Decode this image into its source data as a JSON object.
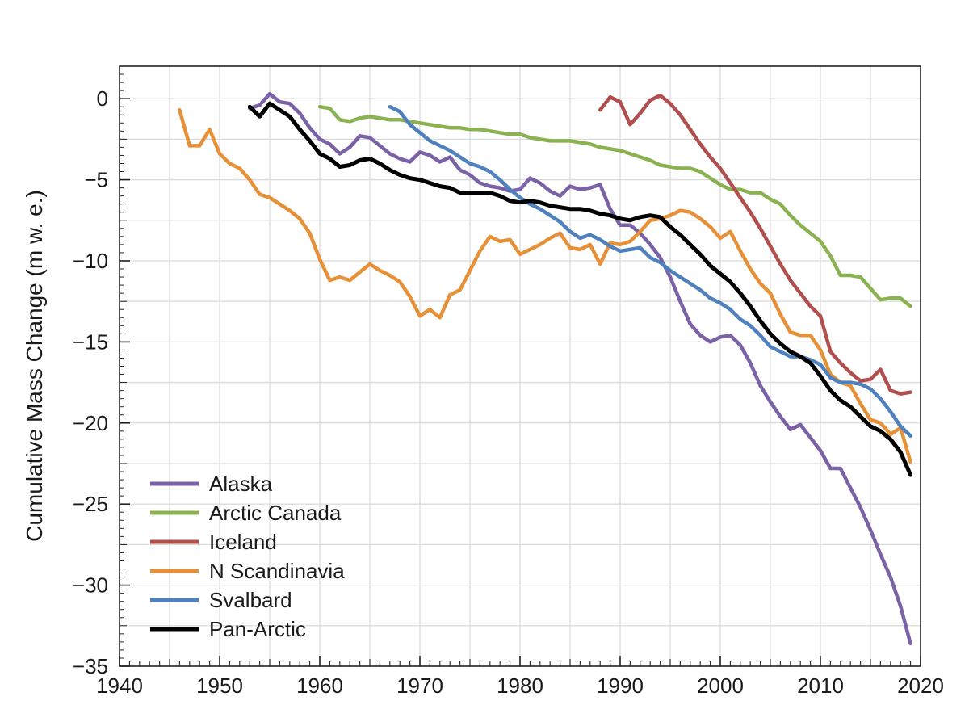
{
  "chart_data": {
    "type": "line",
    "title": "",
    "xlabel": "",
    "ylabel": "Cumulative Mass Change (m w. e.)",
    "xlim": [
      1940,
      2020
    ],
    "ylim": [
      -35,
      2
    ],
    "xticks": [
      1940,
      1950,
      1960,
      1970,
      1980,
      1990,
      2000,
      2010,
      2020
    ],
    "yticks": [
      0,
      -5,
      -10,
      -15,
      -20,
      -25,
      -30,
      -35
    ],
    "ytick_labels": [
      "0",
      "−5",
      "−10",
      "−15",
      "−20",
      "−25",
      "−30",
      "−35"
    ],
    "grid": true,
    "legend_position": "bottom-left",
    "series": [
      {
        "name": "Alaska",
        "color": "#7b62a6",
        "x": [
          1953,
          1954,
          1955,
          1956,
          1957,
          1958,
          1959,
          1960,
          1961,
          1962,
          1963,
          1964,
          1965,
          1966,
          1967,
          1968,
          1969,
          1970,
          1971,
          1972,
          1973,
          1974,
          1975,
          1976,
          1977,
          1978,
          1979,
          1980,
          1981,
          1982,
          1983,
          1984,
          1985,
          1986,
          1987,
          1988,
          1989,
          1990,
          1991,
          1992,
          1993,
          1994,
          1995,
          1996,
          1997,
          1998,
          1999,
          2000,
          2001,
          2002,
          2003,
          2004,
          2005,
          2006,
          2007,
          2008,
          2009,
          2010,
          2011,
          2012,
          2013,
          2014,
          2015,
          2016,
          2017,
          2018,
          2019
        ],
        "y": [
          -0.6,
          -0.4,
          0.3,
          -0.2,
          -0.3,
          -0.9,
          -1.8,
          -2.5,
          -2.8,
          -3.4,
          -3.0,
          -2.3,
          -2.4,
          -2.9,
          -3.4,
          -3.7,
          -3.9,
          -3.3,
          -3.5,
          -3.9,
          -3.6,
          -4.4,
          -4.7,
          -5.2,
          -5.4,
          -5.5,
          -5.7,
          -5.6,
          -4.9,
          -5.2,
          -5.7,
          -6.0,
          -5.4,
          -5.6,
          -5.5,
          -5.3,
          -6.8,
          -7.8,
          -7.8,
          -8.3,
          -9.0,
          -9.8,
          -11.0,
          -12.5,
          -13.9,
          -14.6,
          -15.0,
          -14.7,
          -14.6,
          -15.2,
          -16.3,
          -17.7,
          -18.7,
          -19.6,
          -20.4,
          -20.1,
          -20.9,
          -21.7,
          -22.8,
          -22.8,
          -24.0,
          -25.2,
          -26.6,
          -28.1,
          -29.5,
          -31.3,
          -33.6
        ]
      },
      {
        "name": "Arctic Canada",
        "color": "#8bb251",
        "x": [
          1960,
          1961,
          1962,
          1963,
          1964,
          1965,
          1966,
          1967,
          1968,
          1969,
          1970,
          1971,
          1972,
          1973,
          1974,
          1975,
          1976,
          1977,
          1978,
          1979,
          1980,
          1981,
          1982,
          1983,
          1984,
          1985,
          1986,
          1987,
          1988,
          1989,
          1990,
          1991,
          1992,
          1993,
          1994,
          1995,
          1996,
          1997,
          1998,
          1999,
          2000,
          2001,
          2002,
          2003,
          2004,
          2005,
          2006,
          2007,
          2008,
          2009,
          2010,
          2011,
          2012,
          2013,
          2014,
          2015,
          2016,
          2017,
          2018,
          2019
        ],
        "y": [
          -0.5,
          -0.6,
          -1.3,
          -1.4,
          -1.2,
          -1.1,
          -1.2,
          -1.3,
          -1.3,
          -1.4,
          -1.5,
          -1.6,
          -1.7,
          -1.8,
          -1.8,
          -1.9,
          -1.9,
          -2.0,
          -2.1,
          -2.2,
          -2.2,
          -2.4,
          -2.5,
          -2.6,
          -2.6,
          -2.6,
          -2.7,
          -2.8,
          -3.0,
          -3.1,
          -3.2,
          -3.4,
          -3.6,
          -3.8,
          -4.1,
          -4.2,
          -4.3,
          -4.3,
          -4.5,
          -4.9,
          -5.3,
          -5.6,
          -5.6,
          -5.8,
          -5.8,
          -6.2,
          -6.5,
          -7.2,
          -7.8,
          -8.3,
          -8.8,
          -9.7,
          -10.9,
          -10.9,
          -11.0,
          -11.7,
          -12.4,
          -12.3,
          -12.3,
          -12.8
        ]
      },
      {
        "name": "Iceland",
        "color": "#b04f4d",
        "x": [
          1988,
          1989,
          1990,
          1991,
          1992,
          1993,
          1994,
          1995,
          1996,
          1997,
          1998,
          1999,
          2000,
          2001,
          2002,
          2003,
          2004,
          2005,
          2006,
          2007,
          2008,
          2009,
          2010,
          2011,
          2012,
          2013,
          2014,
          2015,
          2016,
          2017,
          2018,
          2019
        ],
        "y": [
          -0.7,
          0.1,
          -0.2,
          -1.6,
          -0.9,
          -0.1,
          0.2,
          -0.3,
          -1.0,
          -1.9,
          -2.8,
          -3.6,
          -4.3,
          -5.2,
          -6.1,
          -7.0,
          -8.0,
          -9.1,
          -10.2,
          -11.2,
          -12.0,
          -12.8,
          -13.4,
          -15.6,
          -16.3,
          -16.9,
          -17.4,
          -17.3,
          -16.7,
          -18.0,
          -18.2,
          -18.1
        ]
      },
      {
        "name": "N Scandinavia",
        "color": "#e69138",
        "x": [
          1946,
          1947,
          1948,
          1949,
          1950,
          1951,
          1952,
          1953,
          1954,
          1955,
          1956,
          1957,
          1958,
          1959,
          1960,
          1961,
          1962,
          1963,
          1964,
          1965,
          1966,
          1967,
          1968,
          1969,
          1970,
          1971,
          1972,
          1973,
          1974,
          1975,
          1976,
          1977,
          1978,
          1979,
          1980,
          1981,
          1982,
          1983,
          1984,
          1985,
          1986,
          1987,
          1988,
          1989,
          1990,
          1991,
          1992,
          1993,
          1994,
          1995,
          1996,
          1997,
          1998,
          1999,
          2000,
          2001,
          2002,
          2003,
          2004,
          2005,
          2006,
          2007,
          2008,
          2009,
          2010,
          2011,
          2012,
          2013,
          2014,
          2015,
          2016,
          2017,
          2018,
          2019
        ],
        "y": [
          -0.7,
          -2.9,
          -2.9,
          -1.9,
          -3.4,
          -4.0,
          -4.3,
          -5.0,
          -5.9,
          -6.1,
          -6.5,
          -6.9,
          -7.4,
          -8.3,
          -9.9,
          -11.2,
          -11.0,
          -11.2,
          -10.7,
          -10.2,
          -10.6,
          -10.9,
          -11.3,
          -12.2,
          -13.4,
          -13.0,
          -13.5,
          -12.1,
          -11.8,
          -10.6,
          -9.4,
          -8.5,
          -8.8,
          -8.7,
          -9.6,
          -9.3,
          -9.0,
          -8.6,
          -8.3,
          -9.2,
          -9.3,
          -9.0,
          -10.2,
          -8.9,
          -9.0,
          -8.8,
          -8.2,
          -7.5,
          -7.4,
          -7.2,
          -6.9,
          -7.0,
          -7.4,
          -7.9,
          -8.6,
          -8.2,
          -9.4,
          -10.5,
          -11.4,
          -12.0,
          -13.3,
          -14.4,
          -14.6,
          -14.6,
          -15.5,
          -17.0,
          -17.5,
          -17.7,
          -18.8,
          -19.8,
          -20.0,
          -20.7,
          -20.3,
          -22.4
        ]
      },
      {
        "name": "Svalbard",
        "color": "#4e81bd",
        "x": [
          1967,
          1968,
          1969,
          1970,
          1971,
          1972,
          1973,
          1974,
          1975,
          1976,
          1977,
          1978,
          1979,
          1980,
          1981,
          1982,
          1983,
          1984,
          1985,
          1986,
          1987,
          1988,
          1989,
          1990,
          1991,
          1992,
          1993,
          1994,
          1995,
          1996,
          1997,
          1998,
          1999,
          2000,
          2001,
          2002,
          2003,
          2004,
          2005,
          2006,
          2007,
          2008,
          2009,
          2010,
          2011,
          2012,
          2013,
          2014,
          2015,
          2016,
          2017,
          2018,
          2019
        ],
        "y": [
          -0.5,
          -0.8,
          -1.6,
          -2.1,
          -2.6,
          -2.9,
          -3.2,
          -3.6,
          -4.0,
          -4.2,
          -4.5,
          -5.0,
          -5.6,
          -6.1,
          -6.5,
          -6.8,
          -7.2,
          -7.6,
          -8.2,
          -8.6,
          -8.4,
          -8.7,
          -9.1,
          -9.4,
          -9.3,
          -9.2,
          -9.8,
          -10.1,
          -10.6,
          -11.0,
          -11.4,
          -11.8,
          -12.3,
          -12.6,
          -13.0,
          -13.6,
          -14.0,
          -14.6,
          -15.3,
          -15.6,
          -15.9,
          -15.9,
          -16.1,
          -16.4,
          -17.2,
          -17.5,
          -17.5,
          -17.6,
          -17.9,
          -18.5,
          -19.3,
          -20.2,
          -20.8
        ]
      },
      {
        "name": "Pan-Arctic",
        "color": "#000000",
        "x": [
          1953,
          1954,
          1955,
          1956,
          1957,
          1958,
          1959,
          1960,
          1961,
          1962,
          1963,
          1964,
          1965,
          1966,
          1967,
          1968,
          1969,
          1970,
          1971,
          1972,
          1973,
          1974,
          1975,
          1976,
          1977,
          1978,
          1979,
          1980,
          1981,
          1982,
          1983,
          1984,
          1985,
          1986,
          1987,
          1988,
          1989,
          1990,
          1991,
          1992,
          1993,
          1994,
          1995,
          1996,
          1997,
          1998,
          1999,
          2000,
          2001,
          2002,
          2003,
          2004,
          2005,
          2006,
          2007,
          2008,
          2009,
          2010,
          2011,
          2012,
          2013,
          2014,
          2015,
          2016,
          2017,
          2018,
          2019
        ],
        "y": [
          -0.5,
          -1.1,
          -0.3,
          -0.7,
          -1.1,
          -1.9,
          -2.6,
          -3.4,
          -3.7,
          -4.2,
          -4.1,
          -3.8,
          -3.7,
          -4.0,
          -4.4,
          -4.7,
          -4.9,
          -5.0,
          -5.2,
          -5.4,
          -5.5,
          -5.8,
          -5.8,
          -5.8,
          -5.8,
          -6.0,
          -6.3,
          -6.4,
          -6.3,
          -6.4,
          -6.6,
          -6.7,
          -6.8,
          -6.8,
          -6.9,
          -7.1,
          -7.2,
          -7.4,
          -7.5,
          -7.3,
          -7.2,
          -7.3,
          -7.9,
          -8.4,
          -9.0,
          -9.6,
          -10.3,
          -10.8,
          -11.3,
          -12.0,
          -12.8,
          -13.7,
          -14.5,
          -15.1,
          -15.6,
          -15.9,
          -16.3,
          -17.1,
          -18.0,
          -18.6,
          -19.0,
          -19.6,
          -20.2,
          -20.5,
          -21.0,
          -21.8,
          -23.2
        ]
      }
    ]
  }
}
